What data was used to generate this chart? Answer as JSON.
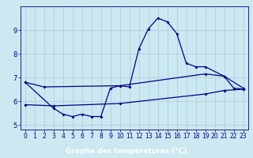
{
  "xlabel": "Graphe des températures (°C)",
  "bg_color": "#cce8f0",
  "plot_bg_color": "#cce8f0",
  "line_color": "#00008b",
  "xlabel_bg": "#00008b",
  "xlabel_fg": "#ffffff",
  "xlim": [
    -0.5,
    23.5
  ],
  "ylim": [
    4.8,
    10.0
  ],
  "yticks": [
    5,
    6,
    7,
    8,
    9
  ],
  "xticks": [
    0,
    1,
    2,
    3,
    4,
    5,
    6,
    7,
    8,
    9,
    10,
    11,
    12,
    13,
    14,
    15,
    16,
    17,
    18,
    19,
    20,
    21,
    22,
    23
  ],
  "line1_x": [
    0,
    2,
    10,
    19,
    21,
    23
  ],
  "line1_y": [
    6.8,
    6.6,
    6.65,
    7.15,
    7.05,
    6.55
  ],
  "line2_x": [
    0,
    3,
    4,
    5,
    6,
    7,
    8,
    9,
    10,
    11,
    12,
    13,
    14,
    15,
    16,
    17,
    18,
    19,
    21,
    22,
    23
  ],
  "line2_y": [
    6.8,
    5.7,
    5.45,
    5.35,
    5.45,
    5.35,
    5.35,
    6.55,
    6.65,
    6.6,
    8.2,
    9.05,
    9.5,
    9.35,
    8.85,
    7.6,
    7.45,
    7.45,
    7.05,
    6.55,
    6.5
  ],
  "line3_x": [
    0,
    3,
    10,
    19,
    21,
    23
  ],
  "line3_y": [
    5.85,
    5.8,
    5.9,
    6.3,
    6.45,
    6.5
  ],
  "grid_color": "#aaccdd",
  "spine_color": "#00008b",
  "tick_fontsize": 5.5,
  "xlabel_fontsize": 6.5
}
